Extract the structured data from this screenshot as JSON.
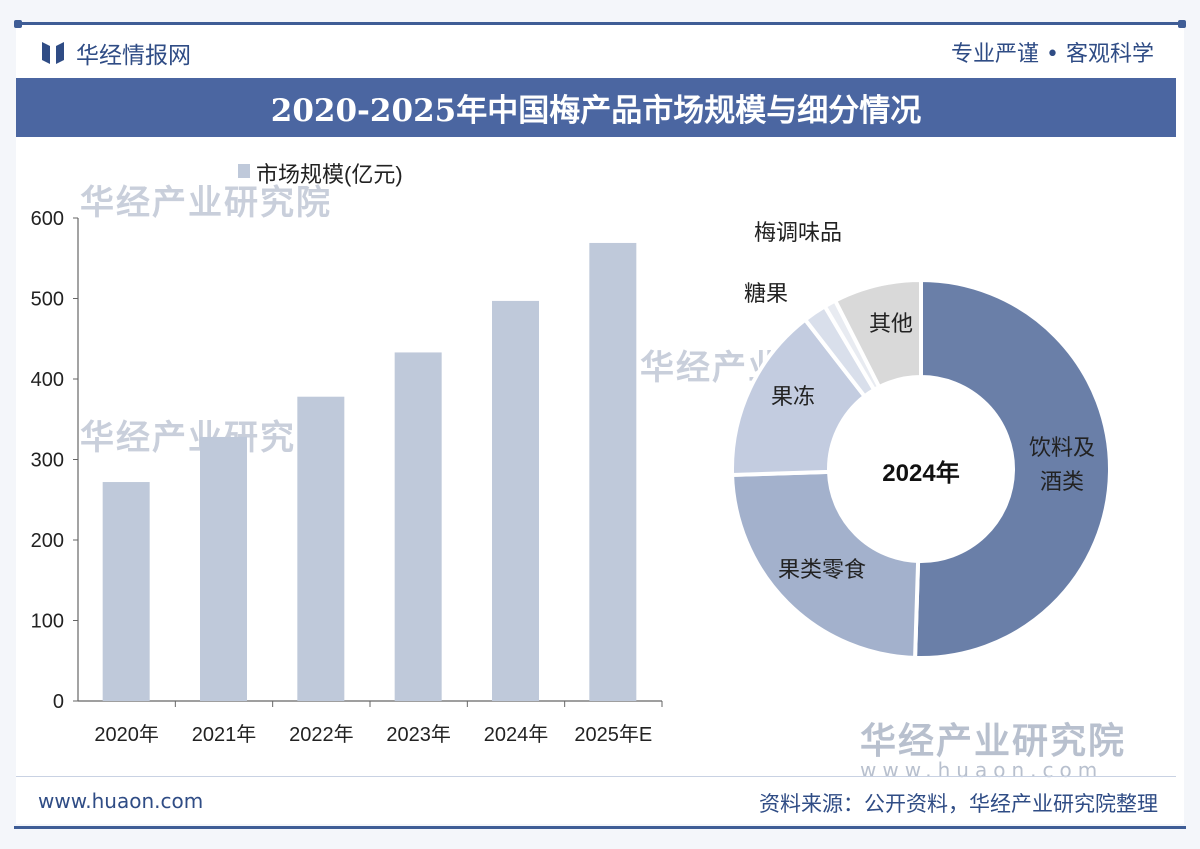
{
  "header": {
    "brand": "华经情报网",
    "slogan": "专业严谨 • 客观科学",
    "title": "2020-2025年中国梅产品市场规模与细分情况"
  },
  "footer": {
    "url": "www.huaon.com",
    "source": "资料来源：公开资料，华经产业研究院整理"
  },
  "watermark": {
    "name": "华经产业研究院",
    "url": "www.huaon.com"
  },
  "colors": {
    "brand": "#4b66a1",
    "bar": "#bfc9da"
  },
  "chart_data": [
    {
      "type": "bar",
      "title": "",
      "legend": "市场规模(亿元)",
      "legend_position": "top",
      "categories": [
        "2020年",
        "2021年",
        "2022年",
        "2023年",
        "2024年",
        "2025年E"
      ],
      "values": [
        272,
        328,
        378,
        433,
        497,
        569
      ],
      "ylim": [
        0,
        600
      ],
      "yticks": [
        0,
        100,
        200,
        300,
        400,
        500,
        600
      ],
      "grid": false
    },
    {
      "type": "pie",
      "variant": "donut",
      "center_label": "2024年",
      "labels": [
        "饮料及酒类",
        "果类零食",
        "果冻",
        "糖果",
        "梅调味品",
        "其他"
      ],
      "values": [
        50.5,
        24,
        15,
        2,
        1,
        7.5
      ],
      "colors": [
        "#6a7fa8",
        "#a3b1cc",
        "#c3cce0",
        "#d9dfeb",
        "#e8ebf1",
        "#d9d9d9"
      ]
    }
  ]
}
